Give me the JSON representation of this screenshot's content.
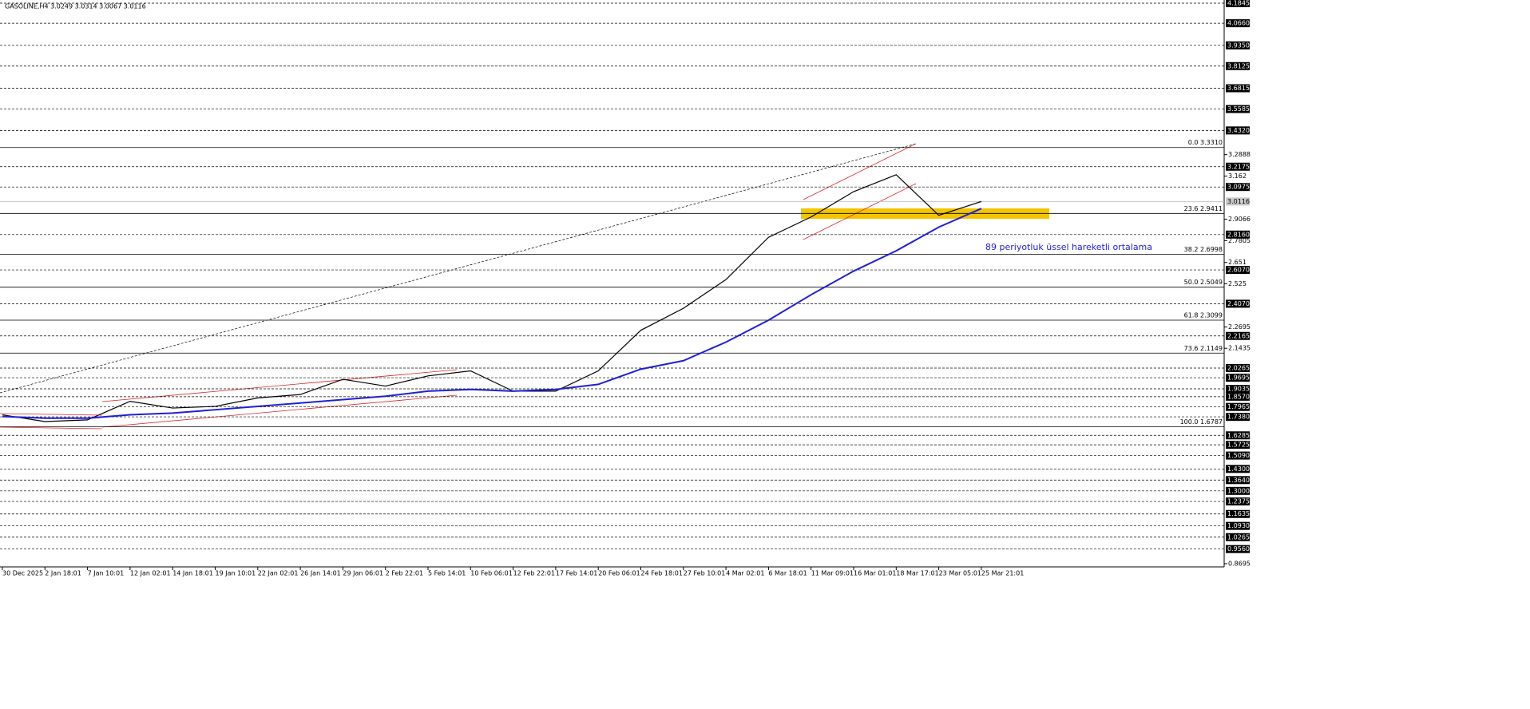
{
  "chart_data": {
    "type": "line",
    "title": "GASOLINE,H4  3.0249 3.0314 3.0067 3.0116",
    "annotation": "89 periyotluk üssel hareketli ortalama",
    "categories": [
      "30 Dec 2025",
      "2 Jan 18:01",
      "7 Jan 10:01",
      "12 Jan 02:01",
      "14 Jan 18:01",
      "19 Jan 10:01",
      "22 Jan 02:01",
      "26 Jan 14:01",
      "29 Jan 06:01",
      "2 Feb 22:01",
      "5 Feb 14:01",
      "10 Feb 06:01",
      "12 Feb 22:01",
      "17 Feb 14:01",
      "20 Feb 06:01",
      "24 Feb 18:01",
      "27 Feb 10:01",
      "4 Mar 02:01",
      "6 Mar 18:01",
      "11 Mar 09:01",
      "16 Mar 01:01",
      "18 Mar 17:01",
      "23 Mar 05:01",
      "25 Mar 21:01"
    ],
    "series": [
      {
        "color": "#000000",
        "values": [
          1.75,
          1.71,
          1.72,
          1.83,
          1.79,
          1.8,
          1.85,
          1.87,
          1.96,
          1.92,
          1.98,
          2.01,
          1.89,
          1.89,
          2.01,
          2.25,
          2.38,
          2.55,
          2.8,
          2.92,
          3.07,
          3.17,
          2.93,
          3.0116
        ]
      },
      {
        "color": "#1f1fd6",
        "values": [
          1.74,
          1.73,
          1.73,
          1.75,
          1.76,
          1.78,
          1.8,
          1.82,
          1.84,
          1.86,
          1.89,
          1.9,
          1.89,
          1.9,
          1.93,
          2.02,
          2.07,
          2.18,
          2.31,
          2.46,
          2.6,
          2.72,
          2.86,
          2.97
        ]
      }
    ],
    "ylim": [
      0.8695,
      4.1845
    ],
    "yticks": [
      3.2888,
      3.162,
      2.9066,
      2.7805,
      2.651,
      2.525,
      2.2695,
      2.1435,
      0.8695
    ],
    "levels": [
      {
        "value": 4.1845,
        "label": "4.1845"
      },
      {
        "value": 4.066,
        "label": "4.0660"
      },
      {
        "value": 3.935,
        "label": "3.9350"
      },
      {
        "value": 3.8125,
        "label": "3.8125"
      },
      {
        "value": 3.6815,
        "label": "3.6815"
      },
      {
        "value": 3.5585,
        "label": "3.5585"
      },
      {
        "value": 3.432,
        "label": "3.4320"
      },
      {
        "value": 3.2175,
        "label": "3.2175"
      },
      {
        "value": 3.0975,
        "label": "3.0975"
      },
      {
        "value": 2.816,
        "label": "2.8160"
      },
      {
        "value": 2.607,
        "label": "2.6070"
      },
      {
        "value": 2.407,
        "label": "2.4070"
      },
      {
        "value": 2.2165,
        "label": "2.2165"
      },
      {
        "value": 2.0265,
        "label": "2.0265"
      },
      {
        "value": 1.9695,
        "label": "1.9695"
      },
      {
        "value": 1.9035,
        "label": "1.9035"
      },
      {
        "value": 1.857,
        "label": "1.8570"
      },
      {
        "value": 1.7965,
        "label": "1.7965"
      },
      {
        "value": 1.738,
        "label": "1.7380"
      },
      {
        "value": 1.6285,
        "label": "1.6285"
      },
      {
        "value": 1.5725,
        "label": "1.5725"
      },
      {
        "value": 1.509,
        "label": "1.5090"
      },
      {
        "value": 1.43,
        "label": "1.4300"
      },
      {
        "value": 1.364,
        "label": "1.3640"
      },
      {
        "value": 1.3,
        "label": "1.3000"
      },
      {
        "value": 1.2375,
        "label": "1.2375"
      },
      {
        "value": 1.1635,
        "label": "1.1635"
      },
      {
        "value": 1.093,
        "label": "1.0930"
      },
      {
        "value": 1.0265,
        "label": "1.0265"
      },
      {
        "value": 0.956,
        "label": "0.9560"
      }
    ],
    "fib_levels": [
      {
        "value": 3.331,
        "label": "0.0 3.3310"
      },
      {
        "value": 2.9411,
        "label": "23.6 2.9411"
      },
      {
        "value": 2.6998,
        "label": "38.2 2.6998"
      },
      {
        "value": 2.5049,
        "label": "50.0 2.5049"
      },
      {
        "value": 2.3099,
        "label": "61.8 2.3099"
      },
      {
        "value": 2.1149,
        "label": "73.6 2.1149"
      },
      {
        "value": 1.6787,
        "label": "100.0 1.6787"
      }
    ],
    "last_price": 3.0116
  }
}
